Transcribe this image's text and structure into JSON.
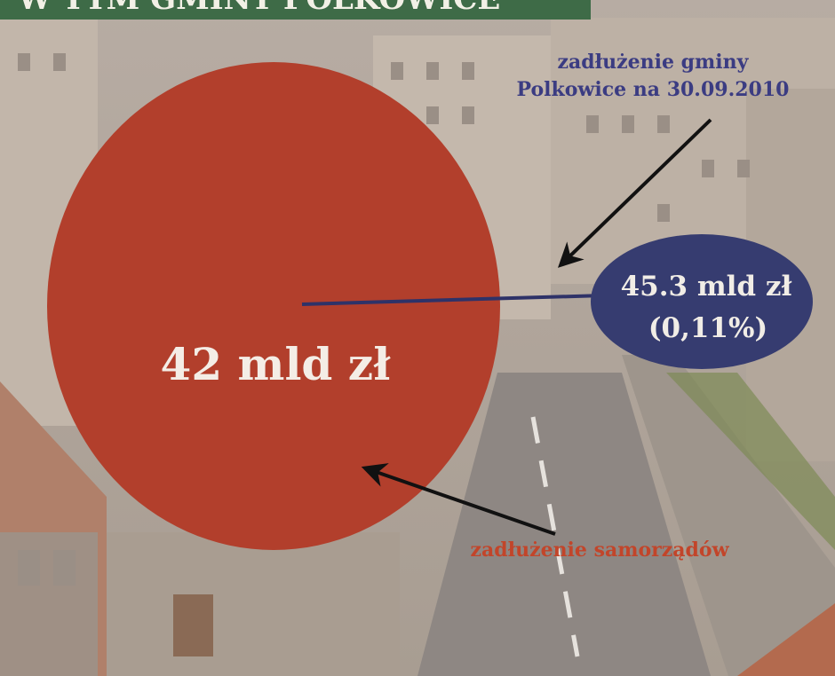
{
  "header": {
    "title": "W TYM GMINY POLKOWICE"
  },
  "big_circle": {
    "label": "42 mld zł"
  },
  "small_circle": {
    "label": "45.3 mld zł",
    "share": "(0,11%)"
  },
  "annotations": {
    "municipality": [
      "zadłużenie gminy",
      "Polkowice na 30.09.2010"
    ],
    "local_governments": "zadłużenie samorządów"
  }
}
